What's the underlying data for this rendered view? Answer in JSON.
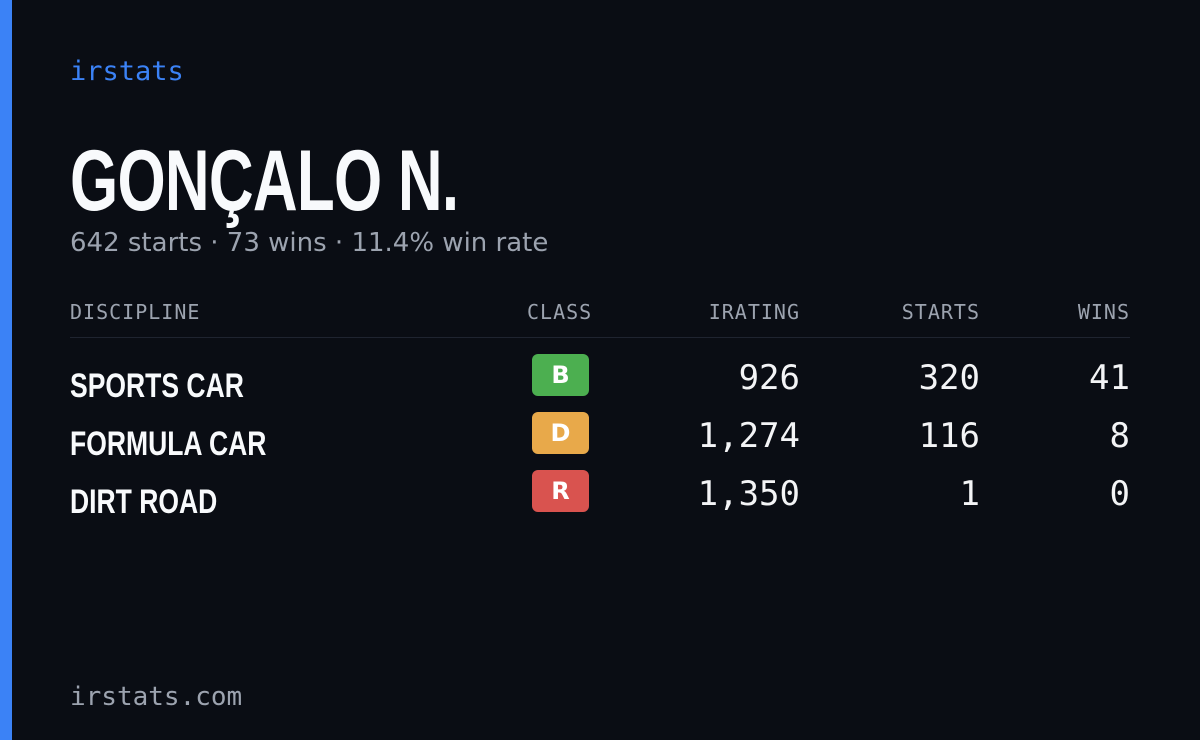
{
  "header": {
    "brand": "irstats",
    "name": "GONÇALO N.",
    "summary": "642 starts · 73 wins · 11.4% win rate"
  },
  "table": {
    "columns": [
      "DISCIPLINE",
      "CLASS",
      "IRATING",
      "STARTS",
      "WINS"
    ],
    "rows": [
      [
        "SPORTS CAR",
        "B",
        "926",
        "320",
        "41"
      ],
      [
        "FORMULA CAR",
        "D",
        "1,274",
        "116",
        "8"
      ],
      [
        "DIRT ROAD",
        "R",
        "1,350",
        "1",
        "0"
      ]
    ]
  },
  "footer": {
    "site": "irstats.com"
  }
}
